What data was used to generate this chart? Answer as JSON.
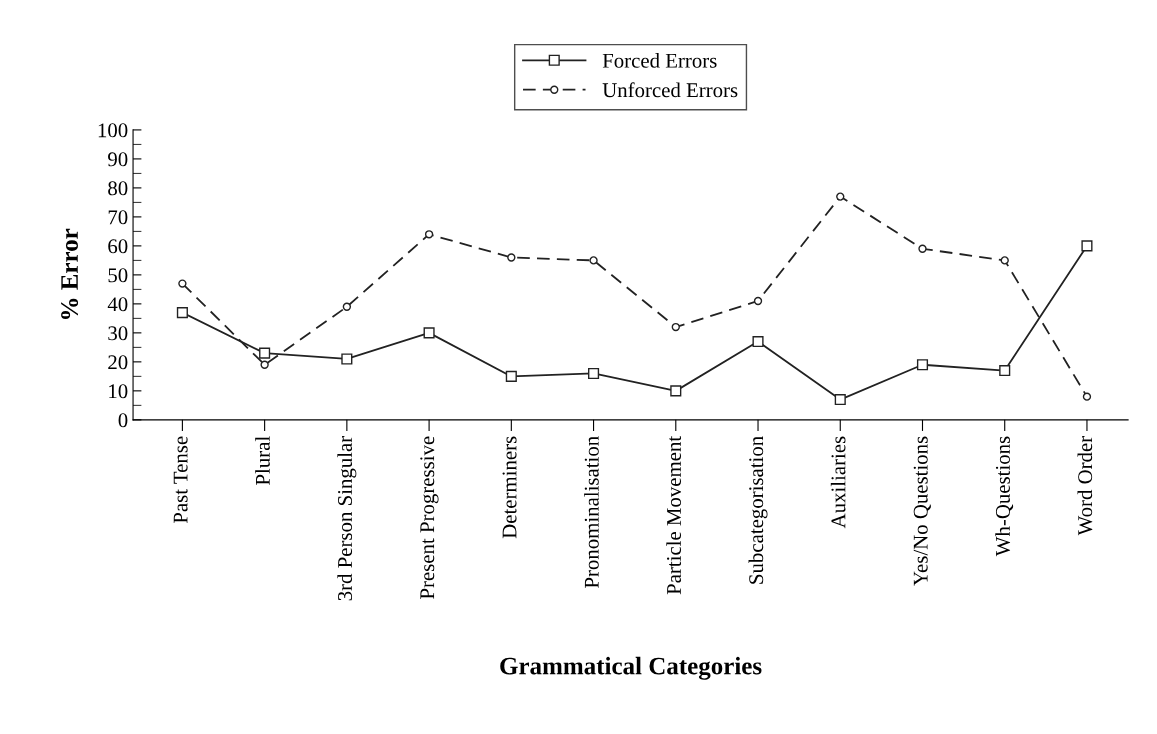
{
  "chart_data": {
    "type": "line",
    "xlabel": "Grammatical Categories",
    "ylabel": "% Error",
    "categories": [
      "Past Tense",
      "Plural",
      "3rd Person Singular",
      "Present Progressive",
      "Determiners",
      "Pronominalisation",
      "Particle Movement",
      "Subcategorisation",
      "Auxiliaries",
      "Yes/No Questions",
      "Wh-Questions",
      "Word Order"
    ],
    "series": [
      {
        "name": "Forced Errors",
        "color": "#222222",
        "marker": "square",
        "line_style": "solid",
        "values": [
          37,
          23,
          21,
          30,
          15,
          16,
          10,
          27,
          7,
          19,
          17,
          60
        ]
      },
      {
        "name": "Unforced Errors",
        "color": "#222222",
        "marker": "circle",
        "line_style": "dashed",
        "values": [
          47,
          19,
          39,
          64,
          56,
          55,
          32,
          41,
          77,
          59,
          55,
          8
        ]
      }
    ],
    "ylim": [
      0,
      100
    ],
    "yticks": [
      0,
      10,
      20,
      30,
      40,
      50,
      60,
      70,
      80,
      90,
      100
    ],
    "grid": false,
    "legend": "top"
  }
}
